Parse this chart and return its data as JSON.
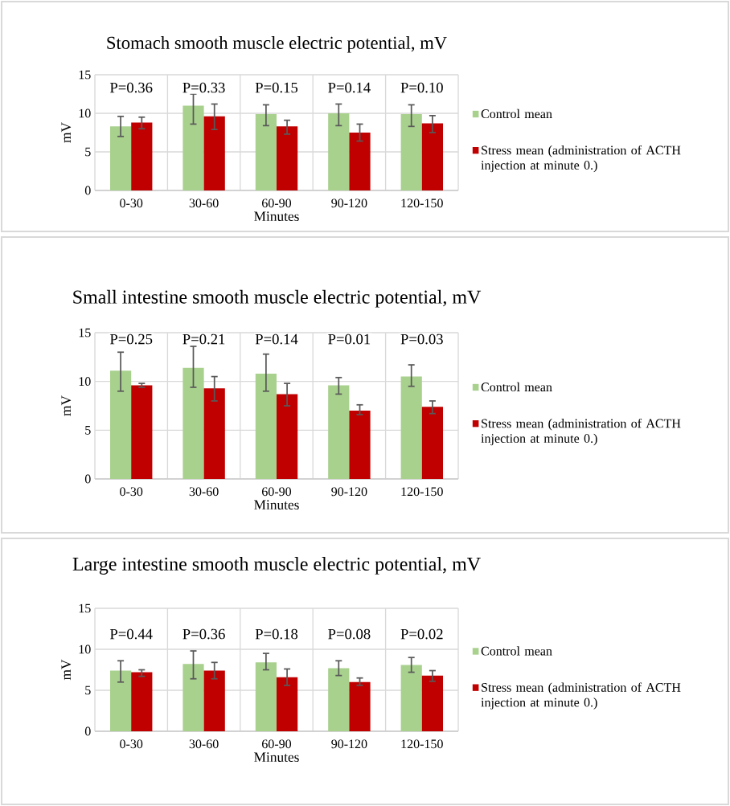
{
  "chart_data": [
    {
      "type": "bar",
      "title": "Stomach smooth muscle electric potential, mV",
      "xlabel": "Minutes",
      "ylabel": "mV",
      "categories": [
        "0-30",
        "30-60",
        "60-90",
        "90-120",
        "120-150"
      ],
      "series": [
        {
          "name": "Control mean",
          "color": "#a9d18e",
          "values": [
            8.3,
            11.0,
            9.9,
            10.0,
            9.9
          ],
          "errors": [
            [
              7.0,
              9.6
            ],
            [
              8.6,
              12.5
            ],
            [
              8.4,
              11.1
            ],
            [
              8.4,
              11.2
            ],
            [
              8.3,
              11.1
            ]
          ]
        },
        {
          "name": "Stress mean (administration of ACTH injection at minute 0.)",
          "color": "#c00000",
          "values": [
            8.8,
            9.6,
            8.3,
            7.5,
            8.7
          ],
          "errors": [
            [
              8.0,
              9.5
            ],
            [
              7.9,
              11.2
            ],
            [
              7.3,
              9.1
            ],
            [
              6.4,
              8.6
            ],
            [
              7.5,
              9.7
            ]
          ]
        }
      ],
      "ylim": [
        0,
        15
      ],
      "yticks": [
        0,
        5,
        10,
        15
      ],
      "grid": true,
      "legend": "right",
      "annotations": [
        "P=0.36",
        "P=0.33",
        "P=0.15",
        "P=0.14",
        "P=0.10"
      ]
    },
    {
      "type": "bar",
      "title": "Small intestine smooth muscle electric potential, mV",
      "xlabel": "Minutes",
      "ylabel": "mV",
      "categories": [
        "0-30",
        "30-60",
        "60-90",
        "90-120",
        "120-150"
      ],
      "series": [
        {
          "name": "Control mean",
          "color": "#a9d18e",
          "values": [
            11.1,
            11.4,
            10.8,
            9.6,
            10.5
          ],
          "errors": [
            [
              9.0,
              13.0
            ],
            [
              9.4,
              13.6
            ],
            [
              9.0,
              12.8
            ],
            [
              8.7,
              10.4
            ],
            [
              9.5,
              11.7
            ]
          ]
        },
        {
          "name": "Stress mean (administration of ACTH injection at minute 0.)",
          "color": "#c00000",
          "values": [
            9.6,
            9.3,
            8.7,
            7.0,
            7.4
          ],
          "errors": [
            [
              9.4,
              9.8
            ],
            [
              8.0,
              10.5
            ],
            [
              7.5,
              9.8
            ],
            [
              6.6,
              7.6
            ],
            [
              6.7,
              8.0
            ]
          ]
        }
      ],
      "ylim": [
        0,
        15
      ],
      "yticks": [
        0,
        5,
        10,
        15
      ],
      "grid": true,
      "legend": "right",
      "annotations": [
        "P=0.25",
        "P=0.21",
        "P=0.14",
        "P=0.01",
        "P=0.03"
      ]
    },
    {
      "type": "bar",
      "title": "Large intestine smooth muscle electric potential, mV",
      "xlabel": "Minutes",
      "ylabel": "mV",
      "categories": [
        "0-30",
        "30-60",
        "60-90",
        "90-120",
        "120-150"
      ],
      "series": [
        {
          "name": "Control mean",
          "color": "#a9d18e",
          "values": [
            7.4,
            8.2,
            8.4,
            7.7,
            8.1
          ],
          "errors": [
            [
              6.0,
              8.6
            ],
            [
              6.4,
              9.8
            ],
            [
              7.5,
              9.5
            ],
            [
              6.8,
              8.6
            ],
            [
              7.2,
              9.0
            ]
          ]
        },
        {
          "name": "Stress mean (administration of ACTH injection at minute 0.)",
          "color": "#c00000",
          "values": [
            7.2,
            7.4,
            6.6,
            6.0,
            6.8
          ],
          "errors": [
            [
              6.7,
              7.5
            ],
            [
              6.4,
              8.4
            ],
            [
              5.6,
              7.6
            ],
            [
              5.6,
              6.5
            ],
            [
              6.1,
              7.4
            ]
          ]
        }
      ],
      "ylim": [
        0,
        15
      ],
      "yticks": [
        0,
        5,
        10,
        15
      ],
      "grid": true,
      "legend": "right",
      "annotations": [
        "P=0.44",
        "P=0.36",
        "P=0.18",
        "P=0.08",
        "P=0.02"
      ]
    }
  ]
}
